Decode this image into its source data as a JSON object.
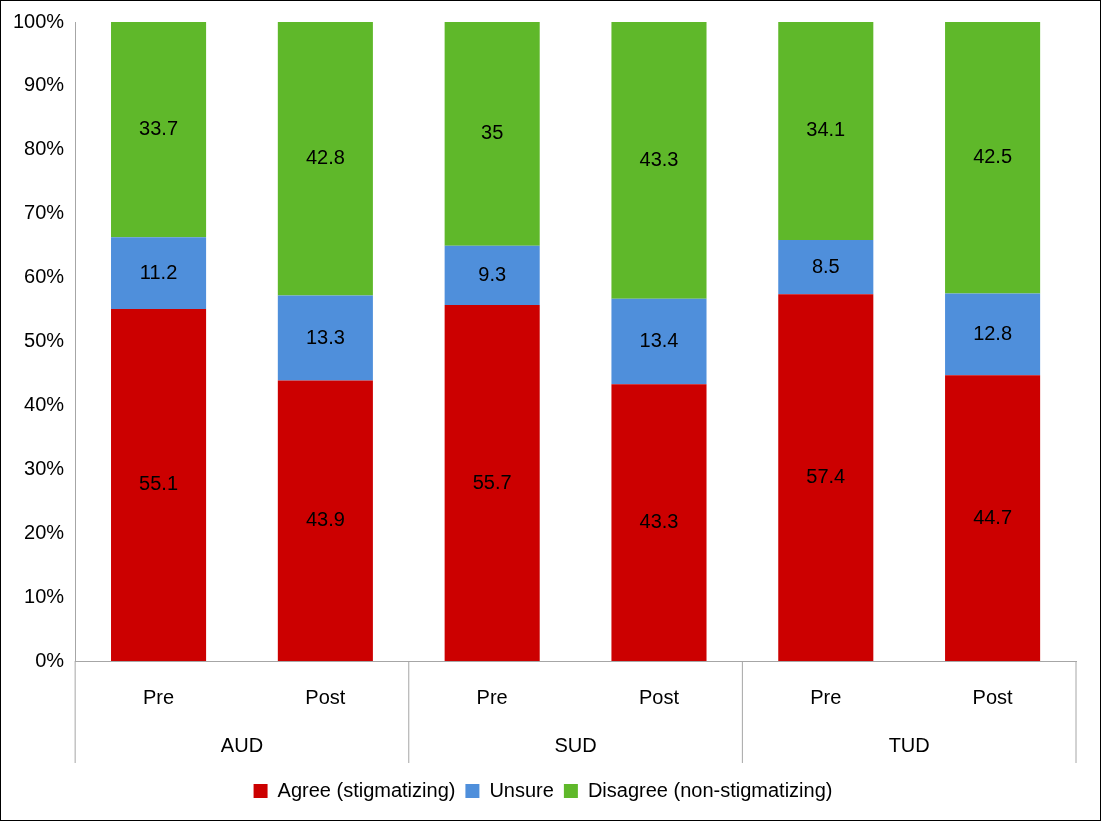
{
  "chart_data": {
    "type": "bar",
    "stacked": true,
    "categories": [
      "Pre",
      "Post",
      "Pre",
      "Post",
      "Pre",
      "Post"
    ],
    "series": [
      {
        "name": "Agree (stigmatizing)",
        "color": "#cc0000",
        "values": [
          55.1,
          43.9,
          55.7,
          43.3,
          57.4,
          44.7
        ]
      },
      {
        "name": "Unsure",
        "color": "#4f8fdb",
        "values": [
          11.2,
          13.3,
          9.3,
          13.4,
          8.5,
          12.8
        ]
      },
      {
        "name": "Disagree (non-stigmatizing)",
        "color": "#5fb82a",
        "values": [
          33.7,
          42.8,
          35,
          43.3,
          34.1,
          42.5
        ]
      }
    ],
    "ylim": [
      0,
      100
    ],
    "yticks": [
      {
        "value": 0,
        "label": "0%"
      },
      {
        "value": 10,
        "label": "10%"
      },
      {
        "value": 20,
        "label": "20%"
      },
      {
        "value": 30,
        "label": "30%"
      },
      {
        "value": 40,
        "label": "40%"
      },
      {
        "value": 50,
        "label": "50%"
      },
      {
        "value": 60,
        "label": "60%"
      },
      {
        "value": 70,
        "label": "70%"
      },
      {
        "value": 80,
        "label": "80%"
      },
      {
        "value": 90,
        "label": "90%"
      },
      {
        "value": 100,
        "label": "100%"
      }
    ],
    "annotations": [
      "AUD",
      "SUD",
      "TUD"
    ],
    "data_labels": true,
    "grid": false,
    "legend": "bottom"
  }
}
